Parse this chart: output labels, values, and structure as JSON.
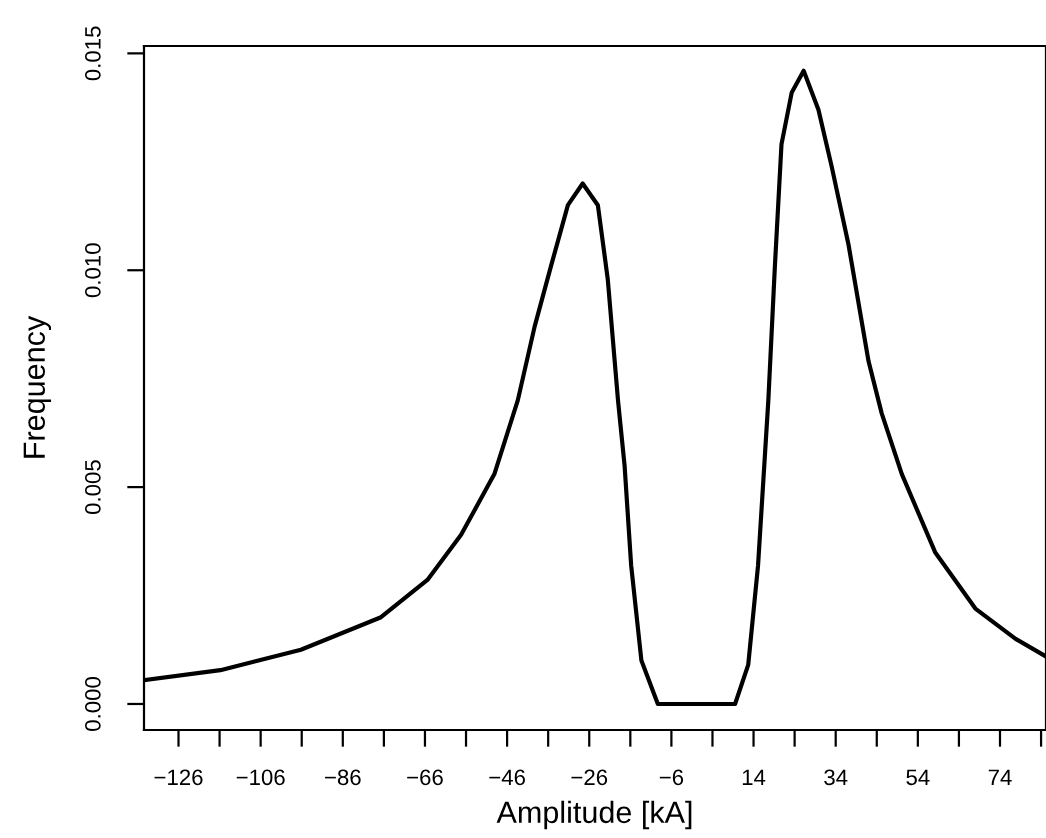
{
  "chart_data": {
    "type": "line",
    "xlabel": "Amplitude [kA]",
    "ylabel": "Frequency",
    "series": [
      {
        "color": "#000000",
        "x": [
          -134.2,
          -115.8,
          -96.2,
          -76.7,
          -65.4,
          -57.2,
          -49.1,
          -43.4,
          -39.3,
          -35.3,
          -31.2,
          -27.6,
          -23.9,
          -21.5,
          -19.0,
          -17.4,
          -15.8,
          -13.3,
          -9.3,
          9.5,
          12.7,
          15.1,
          17.6,
          19.2,
          20.8,
          23.3,
          26.2,
          29.8,
          33.0,
          37.1,
          42.0,
          45.2,
          50.1,
          58.2,
          68.0,
          77.8,
          85.1
        ],
        "values": [
          0.00055,
          0.00078,
          0.00125,
          0.002,
          0.00286,
          0.0039,
          0.0053,
          0.007,
          0.0087,
          0.0101,
          0.0115,
          0.012,
          0.0115,
          0.0098,
          0.007,
          0.0055,
          0.0032,
          0.001,
          0.0,
          0.0,
          0.0009,
          0.0032,
          0.007,
          0.0101,
          0.0129,
          0.0141,
          0.0146,
          0.0137,
          0.0124,
          0.0106,
          0.0079,
          0.0067,
          0.0053,
          0.0035,
          0.0022,
          0.0015,
          0.0011
        ]
      }
    ],
    "xlim": [
      -134.4,
      85.2
    ],
    "ylim": [
      -0.0006,
      0.01517
    ],
    "xticks": [
      -126,
      {
        "value": -116,
        "label": null
      },
      -106,
      {
        "value": -96,
        "label": null
      },
      -86,
      {
        "value": -76,
        "label": null
      },
      -66,
      {
        "value": -56,
        "label": null
      },
      -46,
      {
        "value": -36,
        "label": null
      },
      -26,
      {
        "value": -16,
        "label": null
      },
      -6,
      {
        "value": 4,
        "label": null
      },
      14,
      {
        "value": 24,
        "label": null
      },
      34,
      {
        "value": 44,
        "label": null
      },
      54,
      {
        "value": 64,
        "label": null
      },
      74,
      {
        "value": 84,
        "label": null
      }
    ],
    "yticks": [
      {
        "value": 0,
        "label": "0.000"
      },
      {
        "value": 0.005,
        "label": "0.005"
      },
      {
        "value": 0.01,
        "label": "0.010"
      },
      {
        "value": 0.015,
        "label": "0.015"
      }
    ],
    "grid": false,
    "marker": "none",
    "line_style": "solid"
  }
}
